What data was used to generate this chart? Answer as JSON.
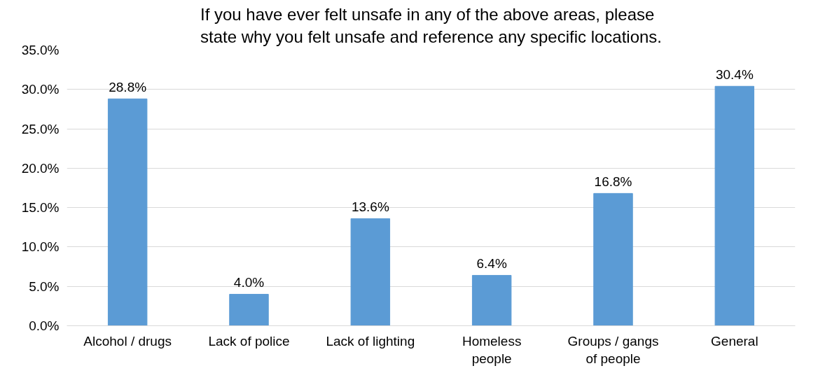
{
  "chart_data": {
    "type": "bar",
    "title": "If you have ever felt unsafe in any of the above areas, please state why you felt unsafe and reference any specific locations.",
    "categories": [
      "Alcohol / drugs",
      "Lack of police",
      "Lack of lighting",
      "Homeless\npeople",
      "Groups / gangs\nof people",
      "General"
    ],
    "values": [
      28.8,
      4.0,
      13.6,
      6.4,
      16.8,
      30.4
    ],
    "value_labels": [
      "28.8%",
      "4.0%",
      "13.6%",
      "6.4%",
      "16.8%",
      "30.4%"
    ],
    "color": "#5b9bd5",
    "ylim": [
      0,
      35
    ],
    "yticks": [
      {
        "value": 0,
        "label": "0.0%"
      },
      {
        "value": 5,
        "label": "5.0%"
      },
      {
        "value": 10,
        "label": "10.0%"
      },
      {
        "value": 15,
        "label": "15.0%"
      },
      {
        "value": 20,
        "label": "20.0%"
      },
      {
        "value": 25,
        "label": "25.0%"
      },
      {
        "value": 30,
        "label": "30.0%"
      },
      {
        "value": 35,
        "label": "35.0%"
      }
    ],
    "grid": "y"
  }
}
